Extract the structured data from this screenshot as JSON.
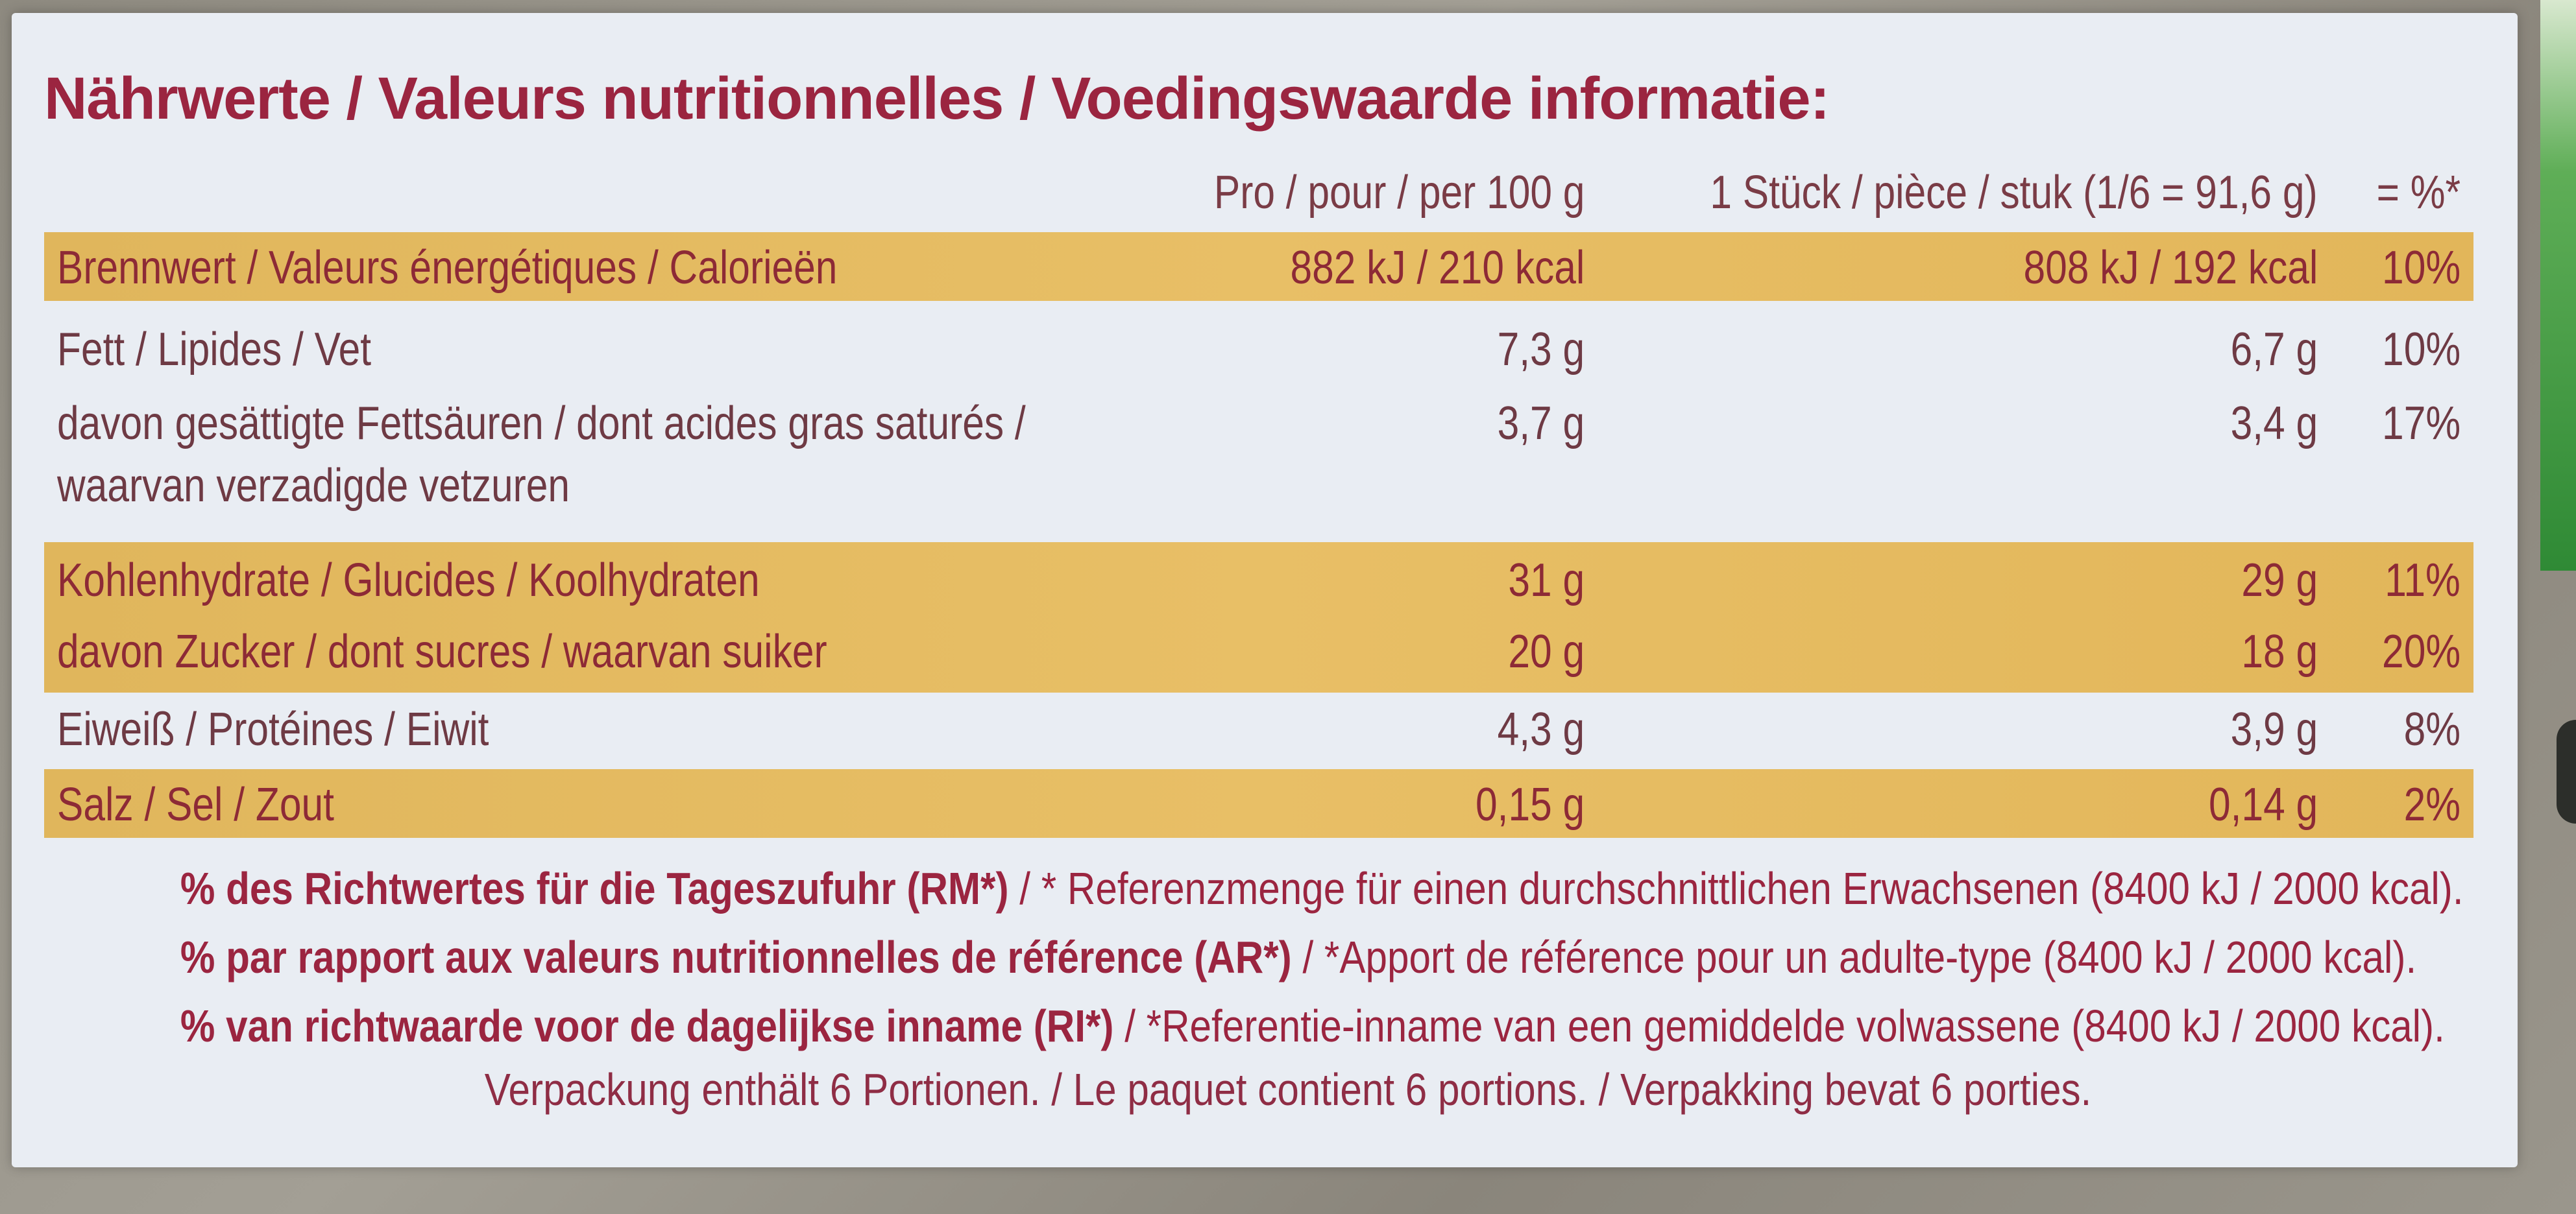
{
  "title": "Nährwerte / Valeurs nutritionnelles / Voedingswaarde informatie:",
  "columns": {
    "per100": "Pro / pour / per 100 g",
    "portion": "1 Stück / pièce / stuk (1/6 = 91,6 g)",
    "pct": "= %*"
  },
  "rows": [
    {
      "name": "Brennwert / Valeurs énergétiques / Calorieën",
      "per100": "882 kJ / 210 kcal",
      "portion": "808 kJ / 192 kcal",
      "pct": "10%",
      "highlight": true
    },
    {
      "name": "Fett / Lipides / Vet",
      "per100": "7,3 g",
      "portion": "6,7 g",
      "pct": "10%",
      "highlight": false
    },
    {
      "name": "davon gesättigte Fettsäuren / dont acides gras saturés /",
      "name2": "waarvan verzadigde vetzuren",
      "per100": "3,7 g",
      "portion": "3,4 g",
      "pct": "17%",
      "highlight": false
    },
    {
      "name": "Kohlenhydrate / Glucides / Koolhydraten",
      "per100": "31 g",
      "portion": "29 g",
      "pct": "11%",
      "highlight": true
    },
    {
      "name": "davon Zucker / dont sucres / waarvan suiker",
      "per100": "20 g",
      "portion": "18 g",
      "pct": "20%",
      "highlight": true
    },
    {
      "name": "Eiweiß / Protéines / Eiwit",
      "per100": "4,3 g",
      "portion": "3,9 g",
      "pct": "8%",
      "highlight": false
    },
    {
      "name": "Salz / Sel / Zout",
      "per100": "0,15 g",
      "portion": "0,14 g",
      "pct": "2%",
      "highlight": true
    }
  ],
  "footnotes": [
    {
      "bold": "% des Richtwertes für die Tageszufuhr (RM*)",
      "rest": " / * Referenzmenge für einen durchschnittlichen Erwachsenen (8400 kJ / 2000 kcal)."
    },
    {
      "bold": "% par rapport aux valeurs nutritionnelles de référence (AR*)",
      "rest": " / *Apport de référence pour un adulte-type (8400 kJ / 2000 kcal)."
    },
    {
      "bold": "% van richtwaarde voor de dagelijkse inname (RI*)",
      "rest": " / *Referentie-inname van een gemiddelde volwassene (8400 kJ / 2000 kcal)."
    }
  ],
  "package_note": "Verpackung enthält 6 Portionen. / Le paquet contient 6 portions. / Verpakking bevat 6 porties.",
  "colors": {
    "title": "#9b2540",
    "band": "#e4ba60",
    "label_bg": "#e9edf3"
  }
}
